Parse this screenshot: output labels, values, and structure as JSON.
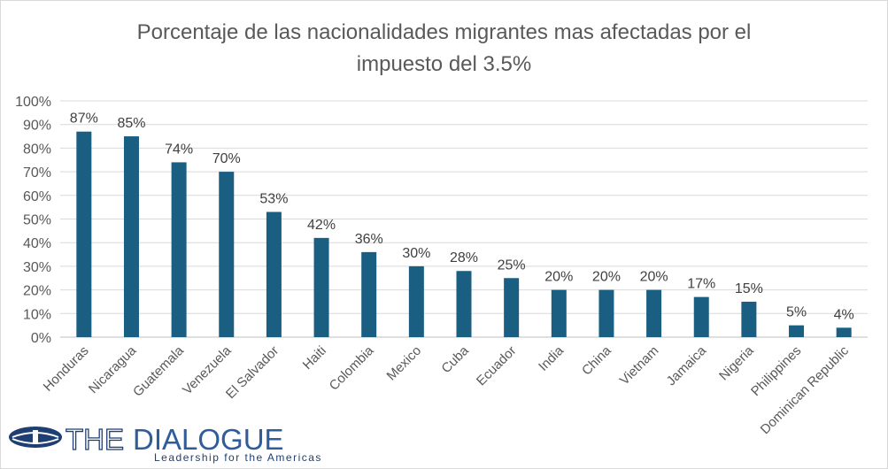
{
  "chart_data": {
    "type": "bar",
    "title_line1": "Porcentaje de las nacionalidades migrantes mas afectadas por el",
    "title_line2": "impuesto del 3.5%",
    "categories": [
      "Honduras",
      "Nicaragua",
      "Guatemala",
      "Venezuela",
      "El Salvador",
      "Haiti",
      "Colombia",
      "Mexico",
      "Cuba",
      "Ecuador",
      "India",
      "China",
      "Vietnam",
      "Jamaica",
      "Nigeria",
      "Philippines",
      "Dominican Republic"
    ],
    "values": [
      87,
      85,
      74,
      70,
      53,
      42,
      36,
      30,
      28,
      25,
      20,
      20,
      20,
      17,
      15,
      5,
      4
    ],
    "data_labels": [
      "87%",
      "85%",
      "74%",
      "70%",
      "53%",
      "42%",
      "36%",
      "30%",
      "28%",
      "25%",
      "20%",
      "20%",
      "20%",
      "17%",
      "15%",
      "5%",
      "4%"
    ],
    "y_ticks": [
      "0%",
      "10%",
      "20%",
      "30%",
      "40%",
      "50%",
      "60%",
      "70%",
      "80%",
      "90%",
      "100%"
    ],
    "ylim": [
      0,
      100
    ],
    "grid": true,
    "bar_color": "#1a5e82"
  },
  "logo": {
    "name": "THEDIALOGUE",
    "tagline": "Leadership for the Americas"
  }
}
